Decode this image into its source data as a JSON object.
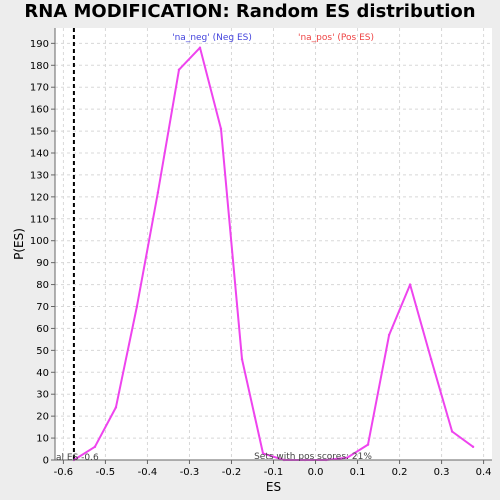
{
  "chart_data": {
    "type": "line",
    "title": "RNA MODIFICATION: Random ES distribution",
    "xlabel": "ES",
    "ylabel": "P(ES)",
    "xlim": [
      -0.62,
      0.42
    ],
    "ylim": [
      0,
      197
    ],
    "x_ticks": [
      -0.6,
      -0.5,
      -0.4,
      -0.3,
      -0.2,
      -0.1,
      0.0,
      0.1,
      0.2,
      0.3,
      0.4
    ],
    "x_tick_labels": [
      "-0.6",
      "-0.5",
      "-0.4",
      "-0.3",
      "-0.2",
      "-0.1",
      "0.0",
      "0.1",
      "0.2",
      "0.3",
      "0.4"
    ],
    "y_ticks": [
      0,
      10,
      20,
      30,
      40,
      50,
      60,
      70,
      80,
      90,
      100,
      110,
      120,
      130,
      140,
      150,
      160,
      170,
      180,
      190
    ],
    "grid": true,
    "series": [
      {
        "name": "",
        "color": "#ee44ee",
        "x": [
          -0.575,
          -0.525,
          -0.475,
          -0.425,
          -0.375,
          -0.325,
          -0.275,
          -0.225,
          -0.175,
          -0.125,
          -0.075,
          -0.025,
          0.025,
          0.075,
          0.125,
          0.175,
          0.225,
          0.275,
          0.325,
          0.375
        ],
        "y": [
          0,
          6,
          24,
          70,
          122,
          178,
          188,
          151,
          46,
          3,
          0,
          0,
          0,
          1,
          7,
          57,
          80,
          46,
          13,
          6
        ]
      }
    ],
    "vline": {
      "x": -0.575,
      "style": "dashed",
      "color": "#000000"
    },
    "legend": [
      {
        "label": "'na_neg' (Neg ES)",
        "color": "#4444dd"
      },
      {
        "label": "'na_pos' (Pos ES)",
        "color": "#ee4444"
      }
    ],
    "annotations": [
      {
        "id": "actual_es",
        "text": "al ES -0.6"
      },
      {
        "id": "pos_scores",
        "text": "Sets with pos scores: 21%"
      }
    ]
  }
}
